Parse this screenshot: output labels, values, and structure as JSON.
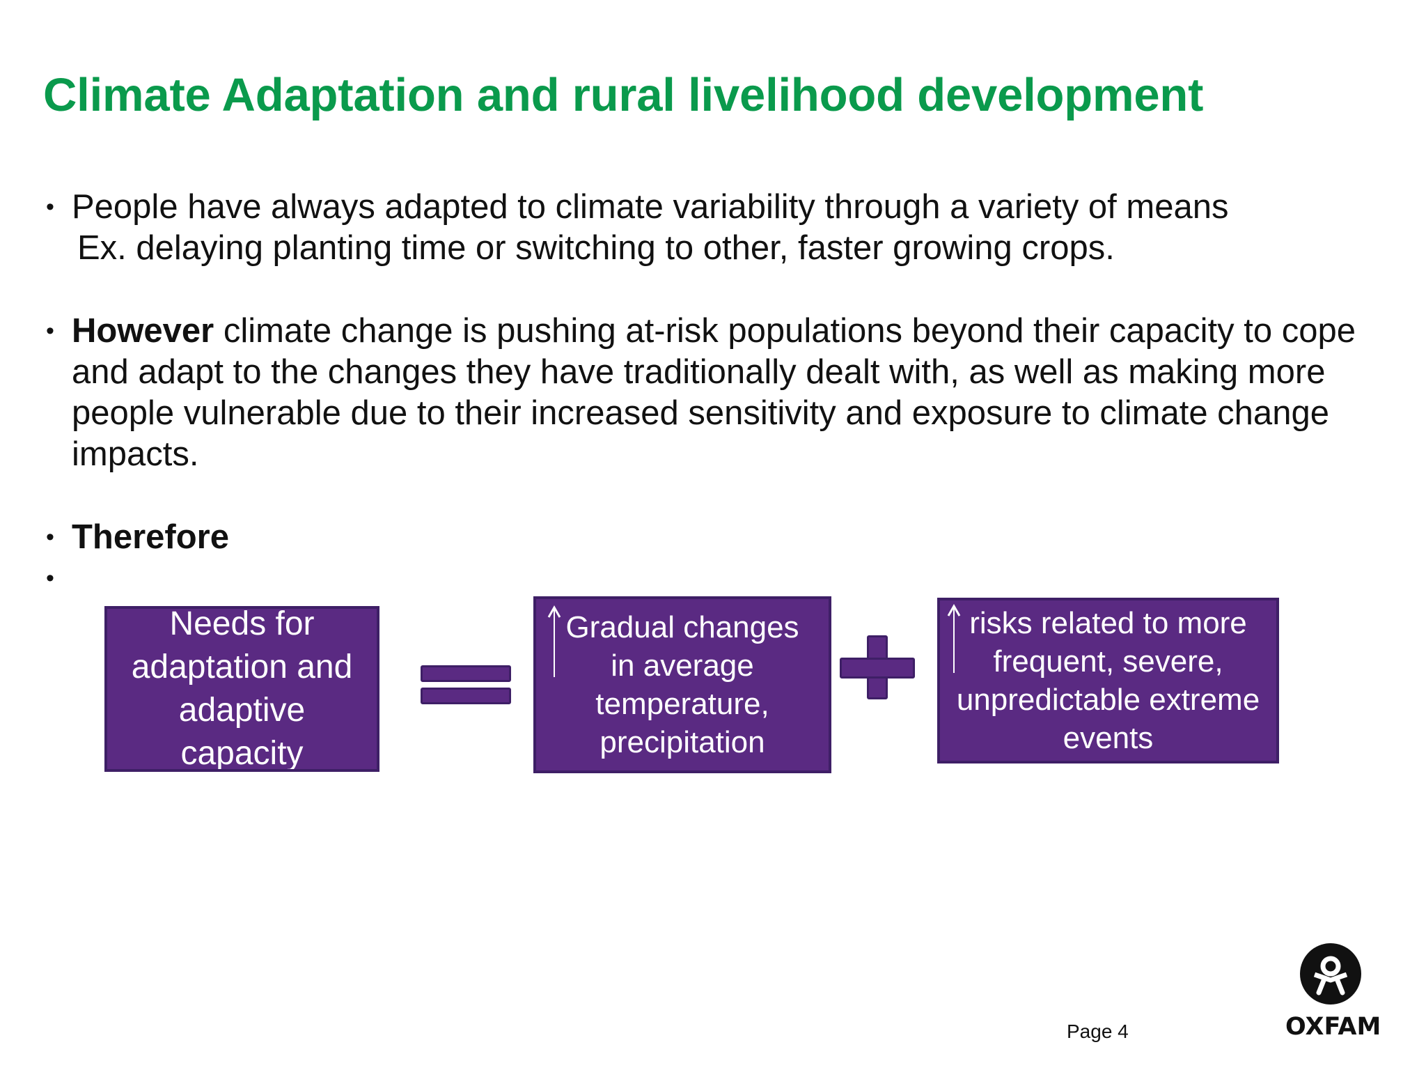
{
  "slide": {
    "title": "Climate Adaptation and rural livelihood development",
    "title_color": "#0a9a4c",
    "bullet_glyph": "•",
    "bullets": [
      {
        "line1": "People have always adapted to climate variability through a variety of means",
        "line2": "Ex. delaying planting time or switching to other, faster growing crops."
      },
      {
        "bold": "However",
        "text": " climate change is pushing at-risk populations beyond their capacity to cope and adapt to the changes they have traditionally dealt with, as well as making more people vulnerable due to their increased sensitivity and exposure to climate change impacts."
      },
      {
        "bold": "Therefore"
      }
    ]
  },
  "equation": {
    "box_color": "#5a2a82",
    "symbol_color": "#5a2a82",
    "box1": "Needs for adaptation and adaptive capacity",
    "box2": "Gradual changes in average temperature, precipitation",
    "box3": "risks related to more frequent, severe, unpredictable extreme events",
    "equals_icon": "equals-sign-icon",
    "plus_icon": "plus-sign-icon",
    "increase_icon": "up-arrow-icon"
  },
  "footer": {
    "page_label": "Page 4",
    "logo_text": "OXFAM",
    "logo_icon": "oxfam-figure-icon"
  }
}
